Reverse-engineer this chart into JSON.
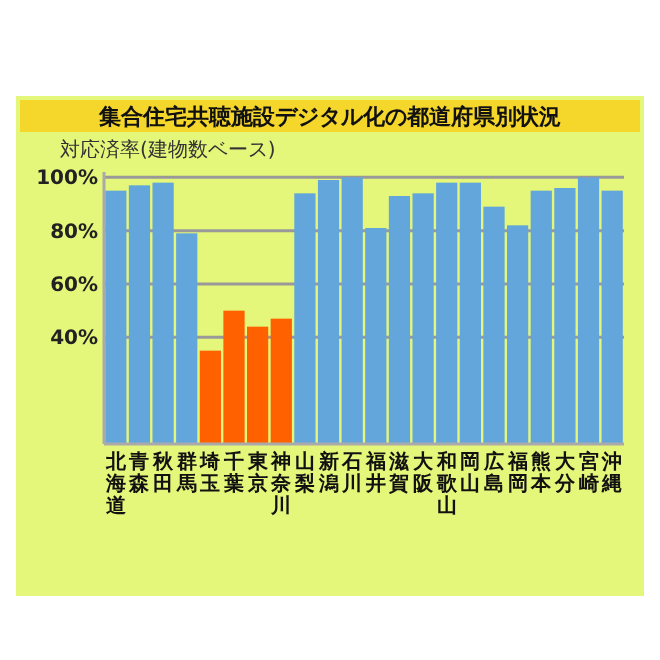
{
  "chart_data": {
    "type": "bar",
    "title": "集合住宅共聴施設デジタル化の都道府県別状況",
    "ylabel": "対応済率(建物数ベース)",
    "categories": [
      "北海道",
      "青森",
      "秋田",
      "群馬",
      "埼玉",
      "千葉",
      "東京",
      "神奈川",
      "山梨",
      "新潟",
      "石川",
      "福井",
      "滋賀",
      "大阪",
      "和歌山",
      "岡山",
      "広島",
      "福岡",
      "熊本",
      "大分",
      "宮崎",
      "沖縄"
    ],
    "values": [
      95,
      97,
      98,
      79,
      35,
      50,
      44,
      47,
      94,
      99,
      100,
      81,
      93,
      94,
      98,
      98,
      89,
      82,
      95,
      96,
      100,
      95
    ],
    "colors": [
      "#62a6dc",
      "#62a6dc",
      "#62a6dc",
      "#62a6dc",
      "#ff6000",
      "#ff6000",
      "#ff6000",
      "#ff6000",
      "#62a6dc",
      "#62a6dc",
      "#62a6dc",
      "#62a6dc",
      "#62a6dc",
      "#62a6dc",
      "#62a6dc",
      "#62a6dc",
      "#62a6dc",
      "#62a6dc",
      "#62a6dc",
      "#62a6dc",
      "#62a6dc",
      "#62a6dc"
    ],
    "ylim": [
      0,
      102
    ],
    "yticks": [
      {
        "value": 40,
        "label": "40%"
      },
      {
        "value": 60,
        "label": "60%"
      },
      {
        "value": 80,
        "label": "80%"
      },
      {
        "value": 100,
        "label": "100%"
      }
    ],
    "grid": "y"
  }
}
